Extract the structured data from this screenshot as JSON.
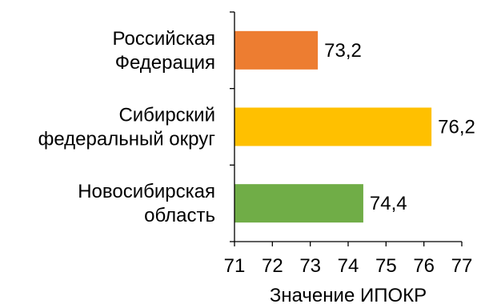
{
  "chart_data": {
    "type": "bar",
    "orientation": "horizontal",
    "categories": [
      [
        "Российская",
        "Федерация"
      ],
      [
        "Сибирский",
        "федеральный округ"
      ],
      [
        "Новосибирская",
        "область"
      ]
    ],
    "values": [
      73.2,
      76.2,
      74.4
    ],
    "value_labels": [
      "73,2",
      "76,2",
      "74,4"
    ],
    "colors": [
      "#ED7D31",
      "#FFC000",
      "#70AD47"
    ],
    "xlabel": "Значение ИПОКР",
    "xlim": [
      71,
      77
    ],
    "xticks": [
      "71",
      "72",
      "73",
      "74",
      "75",
      "76",
      "77"
    ],
    "grid": false
  }
}
